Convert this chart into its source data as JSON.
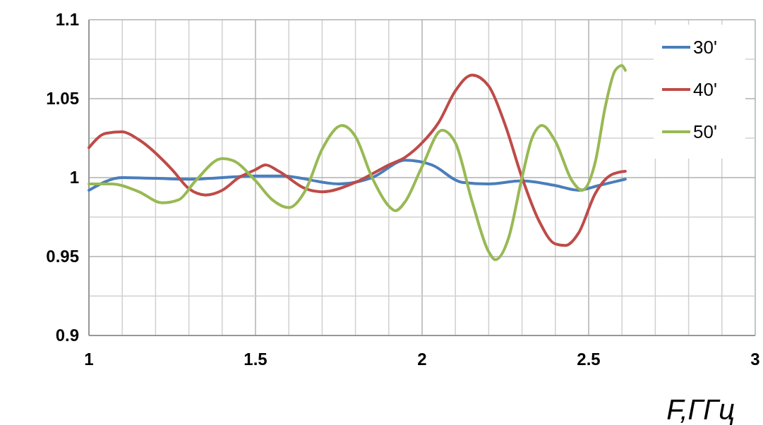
{
  "chart_data": {
    "type": "line",
    "xlabel": "F,ГГц",
    "xlim": [
      1,
      3
    ],
    "ylim": [
      0.9,
      1.1
    ],
    "xticks": [
      1,
      {
        "value": 1.1,
        "label": null
      },
      {
        "value": 1.2,
        "label": null
      },
      {
        "value": 1.3,
        "label": null
      },
      {
        "value": 1.4,
        "label": null
      },
      1.5,
      {
        "value": 1.6,
        "label": null
      },
      {
        "value": 1.7,
        "label": null
      },
      {
        "value": 1.8,
        "label": null
      },
      {
        "value": 1.9,
        "label": null
      },
      2,
      {
        "value": 2.1,
        "label": null
      },
      {
        "value": 2.2,
        "label": null
      },
      {
        "value": 2.3,
        "label": null
      },
      {
        "value": 2.4,
        "label": null
      },
      2.5,
      {
        "value": 2.6,
        "label": null
      },
      {
        "value": 2.7,
        "label": null
      },
      {
        "value": 2.8,
        "label": null
      },
      {
        "value": 2.9,
        "label": null
      },
      3
    ],
    "yticks": [
      0.9,
      {
        "value": 0.925,
        "label": null
      },
      0.95,
      {
        "value": 0.975,
        "label": null
      },
      1,
      {
        "value": 1.025,
        "label": null
      },
      1.05,
      {
        "value": 1.075,
        "label": null
      },
      1.1
    ],
    "grid": true,
    "legend": "top right",
    "marker": "none",
    "line_style": "solid",
    "series": [
      {
        "name": "30'",
        "color": "#4a7ebb",
        "x": [
          1.0,
          1.1,
          1.3,
          1.5,
          1.58,
          1.75,
          1.85,
          1.95,
          2.03,
          2.12,
          2.2,
          2.3,
          2.4,
          2.47,
          2.53,
          2.61
        ],
        "values": [
          0.992,
          1.0,
          0.999,
          1.001,
          1.001,
          0.996,
          1.0,
          1.011,
          1.008,
          0.997,
          0.996,
          0.998,
          0.995,
          0.992,
          0.995,
          0.999
        ]
      },
      {
        "name": "40'",
        "color": "#be4b48",
        "x": [
          1.0,
          1.05,
          1.1,
          1.15,
          1.25,
          1.3,
          1.35,
          1.4,
          1.45,
          1.5,
          1.53,
          1.57,
          1.65,
          1.7,
          1.8,
          1.9,
          1.95,
          2.0,
          2.05,
          2.1,
          2.15,
          2.2,
          2.25,
          2.3,
          2.35,
          2.4,
          2.43,
          2.47,
          2.52,
          2.57,
          2.61
        ],
        "values": [
          1.019,
          1.028,
          1.029,
          1.024,
          1.005,
          0.993,
          0.989,
          0.992,
          1.0,
          1.005,
          1.008,
          1.004,
          0.993,
          0.991,
          0.997,
          1.008,
          1.013,
          1.022,
          1.035,
          1.055,
          1.065,
          1.058,
          1.033,
          1.0,
          0.973,
          0.958,
          0.957,
          0.965,
          0.99,
          1.002,
          1.004
        ]
      },
      {
        "name": "50'",
        "color": "#98b954",
        "x": [
          1.0,
          1.07,
          1.15,
          1.22,
          1.27,
          1.32,
          1.4,
          1.43,
          1.5,
          1.55,
          1.6,
          1.65,
          1.7,
          1.76,
          1.8,
          1.85,
          1.9,
          1.92,
          1.95,
          2.0,
          2.06,
          2.1,
          2.15,
          2.2,
          2.22,
          2.26,
          2.3,
          2.33,
          2.36,
          2.4,
          2.45,
          2.48,
          2.52,
          2.55,
          2.58,
          2.6,
          2.61
        ],
        "values": [
          0.996,
          0.996,
          0.991,
          0.984,
          0.986,
          0.998,
          1.012,
          1.011,
          0.998,
          0.986,
          0.981,
          0.992,
          1.018,
          1.033,
          1.026,
          1.0,
          0.982,
          0.979,
          0.985,
          1.007,
          1.03,
          1.022,
          0.985,
          0.953,
          0.948,
          0.962,
          1.0,
          1.025,
          1.033,
          1.023,
          0.998,
          0.992,
          1.01,
          1.045,
          1.068,
          1.071,
          1.068
        ]
      }
    ]
  }
}
